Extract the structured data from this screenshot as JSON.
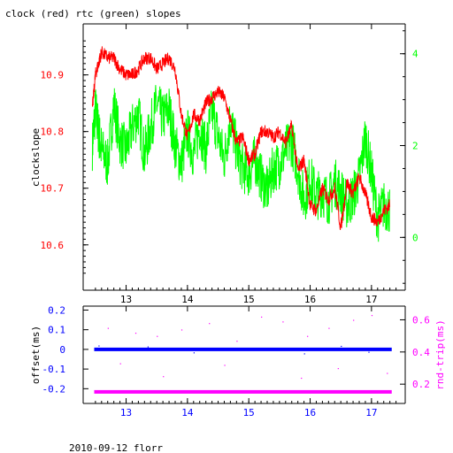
{
  "title": "clock (red) rtc (green) slopes",
  "footer": "2010-09-12 florr",
  "colors": {
    "clock": "#ff0000",
    "rtc": "#00ff00",
    "offset": "#0000ff",
    "rndtrip": "#ff00ff",
    "axis": "#000000"
  },
  "chart_data": [
    {
      "type": "line",
      "title": "clock (red) rtc (green) slopes",
      "xlabel": "",
      "xticks": [
        13,
        14,
        15,
        16,
        17
      ],
      "xlim": [
        12.3,
        17.55
      ],
      "ylabel_left": "clockslope",
      "ylim_left": [
        10.52,
        10.99
      ],
      "yticks_left": [
        10.6,
        10.7,
        10.8,
        10.9
      ],
      "ylim_right": [
        -1.15,
        4.65
      ],
      "yticks_right": [
        0,
        2,
        4
      ],
      "grid": false,
      "series": [
        {
          "name": "clock",
          "axis": "left",
          "x": [
            12.45,
            12.5,
            12.55,
            12.6,
            12.7,
            12.8,
            12.9,
            13.0,
            13.1,
            13.2,
            13.3,
            13.4,
            13.5,
            13.6,
            13.7,
            13.8,
            13.9,
            14.0,
            14.1,
            14.2,
            14.3,
            14.4,
            14.5,
            14.6,
            14.7,
            14.8,
            14.9,
            15.0,
            15.1,
            15.2,
            15.3,
            15.4,
            15.5,
            15.6,
            15.7,
            15.8,
            15.9,
            16.0,
            16.1,
            16.2,
            16.3,
            16.4,
            16.5,
            16.6,
            16.7,
            16.8,
            16.9,
            17.0,
            17.1,
            17.2,
            17.3
          ],
          "y": [
            10.84,
            10.9,
            10.92,
            10.94,
            10.93,
            10.93,
            10.91,
            10.9,
            10.9,
            10.91,
            10.93,
            10.93,
            10.91,
            10.92,
            10.93,
            10.91,
            10.83,
            10.79,
            10.83,
            10.82,
            10.85,
            10.86,
            10.87,
            10.86,
            10.82,
            10.78,
            10.79,
            10.75,
            10.76,
            10.8,
            10.8,
            10.79,
            10.8,
            10.78,
            10.81,
            10.73,
            10.75,
            10.67,
            10.66,
            10.7,
            10.68,
            10.7,
            10.63,
            10.71,
            10.69,
            10.72,
            10.69,
            10.65,
            10.64,
            10.66,
            10.67
          ]
        },
        {
          "name": "rtc",
          "axis": "right",
          "x": [
            12.45,
            12.5,
            12.55,
            12.6,
            12.7,
            12.8,
            12.9,
            13.0,
            13.1,
            13.2,
            13.3,
            13.4,
            13.5,
            13.6,
            13.7,
            13.8,
            13.9,
            14.0,
            14.1,
            14.2,
            14.3,
            14.4,
            14.5,
            14.6,
            14.7,
            14.8,
            14.9,
            15.0,
            15.1,
            15.2,
            15.3,
            15.4,
            15.5,
            15.6,
            15.7,
            15.8,
            15.9,
            16.0,
            16.1,
            16.2,
            16.3,
            16.4,
            16.5,
            16.6,
            16.7,
            16.8,
            16.9,
            17.0,
            17.1,
            17.2,
            17.3
          ],
          "y": [
            2.0,
            2.8,
            2.3,
            1.9,
            1.6,
            2.9,
            2.1,
            1.9,
            2.4,
            2.7,
            1.8,
            2.4,
            2.9,
            2.6,
            2.8,
            2.0,
            1.6,
            2.3,
            1.8,
            2.4,
            1.9,
            2.8,
            2.2,
            1.7,
            2.6,
            1.9,
            1.5,
            1.4,
            1.7,
            1.3,
            1.0,
            1.5,
            1.6,
            1.9,
            2.1,
            1.5,
            0.8,
            1.3,
            0.9,
            1.0,
            0.8,
            1.2,
            1.0,
            0.7,
            0.9,
            1.3,
            2.2,
            1.4,
            0.4,
            0.7,
            0.6
          ]
        }
      ]
    },
    {
      "type": "scatter",
      "xticks": [
        13,
        14,
        15,
        16,
        17
      ],
      "xlim": [
        12.3,
        17.55
      ],
      "ylabel_left": "offset(ms)",
      "ylim_left": [
        -0.275,
        0.22
      ],
      "yticks_left": [
        -0.2,
        -0.1,
        0,
        0.1,
        0.2
      ],
      "ylabel_right": "rnd-trip(ms)",
      "ylim_right": [
        0.08,
        0.685
      ],
      "yticks_right": [
        0.2,
        0.4,
        0.6
      ],
      "grid": false,
      "series": [
        {
          "name": "offset",
          "axis": "left",
          "x_range": [
            12.48,
            17.33
          ],
          "y_mean": 0.0,
          "y_spread": 0.006,
          "outliers": [
            [
              12.55,
              0.02
            ],
            [
              13.35,
              0.015
            ],
            [
              14.1,
              -0.015
            ],
            [
              15.9,
              -0.02
            ],
            [
              16.5,
              0.018
            ],
            [
              16.95,
              -0.012
            ]
          ]
        },
        {
          "name": "rndtrip",
          "axis": "right",
          "x_range": [
            12.48,
            17.33
          ],
          "y_mean": 0.152,
          "y_spread": 0.008,
          "outliers": [
            [
              12.7,
              0.55
            ],
            [
              13.15,
              0.52
            ],
            [
              13.5,
              0.5
            ],
            [
              13.9,
              0.54
            ],
            [
              14.35,
              0.58
            ],
            [
              14.8,
              0.47
            ],
            [
              15.2,
              0.62
            ],
            [
              15.55,
              0.59
            ],
            [
              15.95,
              0.5
            ],
            [
              16.3,
              0.55
            ],
            [
              16.7,
              0.6
            ],
            [
              17.0,
              0.63
            ],
            [
              12.9,
              0.33
            ],
            [
              14.6,
              0.32
            ],
            [
              16.45,
              0.3
            ],
            [
              13.6,
              0.25
            ],
            [
              15.85,
              0.24
            ],
            [
              17.25,
              0.27
            ]
          ]
        }
      ]
    }
  ]
}
